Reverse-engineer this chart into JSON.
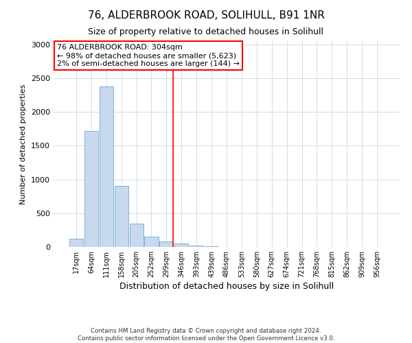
{
  "title1": "76, ALDERBROOK ROAD, SOLIHULL, B91 1NR",
  "title2": "Size of property relative to detached houses in Solihull",
  "xlabel": "Distribution of detached houses by size in Solihull",
  "ylabel": "Number of detached properties",
  "footnote1": "Contains HM Land Registry data © Crown copyright and database right 2024.",
  "footnote2": "Contains public sector information licensed under the Open Government Licence v3.0.",
  "bin_labels": [
    "17sqm",
    "64sqm",
    "111sqm",
    "158sqm",
    "205sqm",
    "252sqm",
    "299sqm",
    "346sqm",
    "393sqm",
    "439sqm",
    "486sqm",
    "533sqm",
    "580sqm",
    "627sqm",
    "674sqm",
    "721sqm",
    "768sqm",
    "815sqm",
    "862sqm",
    "909sqm",
    "956sqm"
  ],
  "bar_heights": [
    120,
    1720,
    2380,
    900,
    350,
    155,
    80,
    55,
    20,
    10,
    3,
    3,
    3,
    0,
    0,
    0,
    0,
    0,
    0,
    0,
    0
  ],
  "bar_color": "#c8d9ee",
  "bar_edgecolor": "#6fa8d4",
  "property_bin_index": 6,
  "annotation_text": "76 ALDERBROOK ROAD: 304sqm\n← 98% of detached houses are smaller (5,623)\n2% of semi-detached houses are larger (144) →",
  "annotation_box_color": "red",
  "vline_color": "red",
  "ylim": [
    0,
    3050
  ],
  "yticks": [
    0,
    500,
    1000,
    1500,
    2000,
    2500,
    3000
  ],
  "background_color": "#ffffff",
  "grid_color": "#d0dce8"
}
